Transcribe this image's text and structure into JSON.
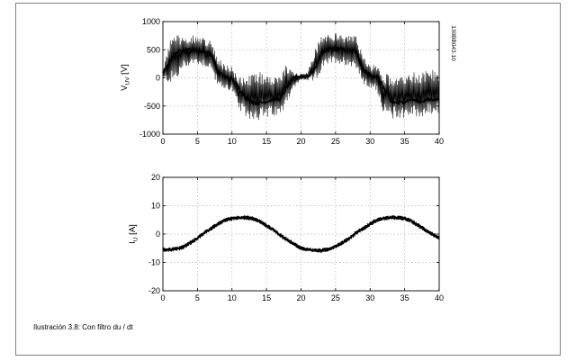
{
  "figure": {
    "caption": "Ilustración 3.8: Con filtro du / dt",
    "code": "130BB043.10"
  },
  "chart_data": [
    {
      "type": "line",
      "title": "",
      "xlabel": "",
      "ylabel": "V",
      "ylabel_sub": "UV",
      "ylabel_unit": " [V]",
      "xlim": [
        0,
        40
      ],
      "ylim": [
        -1000,
        1000
      ],
      "x_ticks": [
        0,
        5,
        10,
        15,
        20,
        25,
        30,
        35,
        40
      ],
      "y_ticks": [
        1000,
        500,
        0,
        -500,
        -1000
      ],
      "grid": true,
      "legend": "none",
      "series": [
        {
          "color": "#000000",
          "x": [
            0,
            1,
            2,
            3,
            4,
            5,
            6,
            7,
            8,
            9,
            10,
            11,
            12,
            13,
            14,
            15,
            16,
            17,
            18,
            19,
            20,
            21,
            22,
            23,
            24,
            25,
            26,
            27,
            28,
            29,
            30,
            31,
            32,
            33,
            34,
            35,
            36,
            37,
            38,
            39,
            40
          ],
          "y": [
            80,
            300,
            460,
            500,
            500,
            490,
            470,
            420,
            100,
            20,
            -20,
            -180,
            -360,
            -430,
            -450,
            -420,
            -380,
            -380,
            -160,
            10,
            30,
            30,
            160,
            460,
            510,
            520,
            510,
            490,
            460,
            150,
            40,
            30,
            -180,
            -420,
            -450,
            -420,
            -380,
            -420,
            -400,
            -380,
            -380
          ],
          "envelope_upper": [
            130,
            750,
            800,
            800,
            790,
            780,
            760,
            700,
            400,
            260,
            240,
            40,
            60,
            120,
            160,
            180,
            120,
            100,
            300,
            120,
            80,
            120,
            560,
            780,
            820,
            820,
            810,
            790,
            770,
            400,
            260,
            250,
            120,
            120,
            150,
            130,
            140,
            150,
            180,
            200,
            180
          ],
          "envelope_lower": [
            -20,
            -160,
            -100,
            120,
            200,
            200,
            170,
            100,
            -200,
            -240,
            -260,
            -600,
            -740,
            -800,
            -800,
            -780,
            -750,
            -740,
            -450,
            -200,
            -40,
            -60,
            -120,
            100,
            200,
            230,
            210,
            180,
            140,
            -150,
            -220,
            -250,
            -700,
            -780,
            -770,
            -760,
            -740,
            -760,
            -740,
            -720,
            -700
          ]
        }
      ]
    },
    {
      "type": "line",
      "title": "",
      "xlabel": "",
      "ylabel": "I",
      "ylabel_sub": "U",
      "ylabel_unit": " [A]",
      "xlim": [
        0,
        40
      ],
      "ylim": [
        -20,
        20
      ],
      "x_ticks": [
        0,
        5,
        10,
        15,
        20,
        25,
        30,
        35,
        40
      ],
      "y_ticks": [
        20,
        10,
        0,
        -10,
        -20
      ],
      "grid": true,
      "legend": "none",
      "series": [
        {
          "color": "#000000",
          "x": [
            0,
            1,
            2,
            3,
            4,
            5,
            6,
            7,
            8,
            9,
            10,
            11,
            12,
            13,
            14,
            15,
            16,
            17,
            18,
            19,
            20,
            21,
            22,
            23,
            24,
            25,
            26,
            27,
            28,
            29,
            30,
            31,
            32,
            33,
            34,
            35,
            36,
            37,
            38,
            39,
            40
          ],
          "y": [
            -5.5,
            -5.5,
            -5.2,
            -4.5,
            -3.0,
            -1.5,
            0.5,
            2.0,
            3.5,
            5.0,
            5.5,
            5.8,
            5.8,
            5.5,
            4.5,
            3.0,
            1.5,
            -0.5,
            -2.0,
            -3.5,
            -5.0,
            -5.5,
            -5.8,
            -5.8,
            -5.3,
            -4.3,
            -3.0,
            -1.5,
            0.5,
            2.0,
            3.5,
            5.0,
            5.5,
            5.8,
            5.8,
            5.5,
            4.5,
            3.0,
            1.5,
            0.0,
            -1.3
          ],
          "noise_amplitude": 0.8
        }
      ]
    }
  ]
}
